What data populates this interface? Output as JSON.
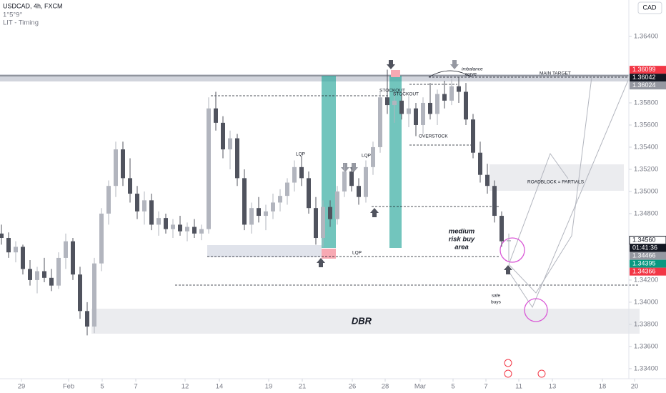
{
  "header": {
    "symbol": "USDCAD, 4h, FXCM",
    "line2": "1°5°9°",
    "indicator": "LIT - Timing",
    "currency": "CAD"
  },
  "chart_data": {
    "type": "candlestick",
    "colors": {
      "up": "#b2b5be",
      "down": "#50535e"
    },
    "x": [
      0,
      1,
      2,
      3,
      4,
      5,
      6,
      7,
      8,
      9,
      10,
      11,
      12,
      13,
      14,
      15,
      16,
      17,
      18,
      19,
      20,
      21,
      22,
      23,
      24,
      25,
      26,
      27,
      28,
      29,
      30,
      31,
      32,
      33,
      34,
      35,
      36,
      37,
      38,
      39,
      40,
      41,
      42,
      43,
      44,
      45,
      46,
      47,
      48,
      49,
      50,
      51,
      52,
      53,
      54,
      55,
      56,
      57,
      58,
      59,
      60,
      61,
      62,
      63,
      64,
      65,
      66,
      67,
      68,
      69,
      70,
      71
    ],
    "open": [
      1.3462,
      1.3458,
      1.3445,
      1.345,
      1.343,
      1.342,
      1.3428,
      1.3422,
      1.3415,
      1.344,
      1.3455,
      1.3425,
      1.3392,
      1.3378,
      1.3435,
      1.348,
      1.3505,
      1.3538,
      1.3512,
      1.3498,
      1.3482,
      1.3492,
      1.347,
      1.3476,
      1.3466,
      1.347,
      1.3464,
      1.3468,
      1.3462,
      1.3466,
      1.3575,
      1.3562,
      1.3538,
      1.3548,
      1.3512,
      1.347,
      1.3485,
      1.3478,
      1.3482,
      1.349,
      1.3496,
      1.3508,
      1.3522,
      1.3512,
      1.3485,
      1.3458,
      1.3486,
      1.3475,
      1.35,
      1.3518,
      1.3505,
      1.3495,
      1.3522,
      1.354,
      1.3585,
      1.3578,
      1.3582,
      1.357,
      1.3575,
      1.356,
      1.358,
      1.357,
      1.3588,
      1.3582,
      1.3595,
      1.359,
      1.3565,
      1.3535,
      1.3515,
      1.3505,
      1.3478,
      1.3455
    ],
    "high": [
      1.347,
      1.3463,
      1.3455,
      1.3452,
      1.3438,
      1.3432,
      1.344,
      1.343,
      1.3445,
      1.3462,
      1.3458,
      1.3432,
      1.34,
      1.344,
      1.3485,
      1.351,
      1.3545,
      1.3545,
      1.353,
      1.3505,
      1.35,
      1.3498,
      1.3482,
      1.348,
      1.3475,
      1.3478,
      1.3472,
      1.3475,
      1.347,
      1.3585,
      1.359,
      1.3568,
      1.3555,
      1.3552,
      1.352,
      1.349,
      1.3495,
      1.3488,
      1.3498,
      1.3502,
      1.3512,
      1.3528,
      1.3532,
      1.3518,
      1.3495,
      1.3492,
      1.3492,
      1.3505,
      1.3525,
      1.3522,
      1.3512,
      1.3528,
      1.3545,
      1.359,
      1.361,
      1.359,
      1.3588,
      1.3586,
      1.358,
      1.3585,
      1.3598,
      1.3592,
      1.36,
      1.3602,
      1.3603,
      1.3598,
      1.357,
      1.3545,
      1.3525,
      1.351,
      1.3482,
      1.3462
    ],
    "low": [
      1.3452,
      1.344,
      1.3436,
      1.3425,
      1.3415,
      1.3408,
      1.3418,
      1.341,
      1.3412,
      1.343,
      1.342,
      1.3385,
      1.337,
      1.3372,
      1.3428,
      1.347,
      1.3495,
      1.3505,
      1.349,
      1.3475,
      1.347,
      1.3465,
      1.346,
      1.3462,
      1.3458,
      1.346,
      1.3455,
      1.3458,
      1.3456,
      1.3462,
      1.3555,
      1.353,
      1.352,
      1.3505,
      1.3465,
      1.3462,
      1.3472,
      1.3465,
      1.3475,
      1.3482,
      1.3488,
      1.35,
      1.3505,
      1.348,
      1.3452,
      1.345,
      1.3468,
      1.347,
      1.3495,
      1.35,
      1.3488,
      1.349,
      1.3515,
      1.3535,
      1.357,
      1.3562,
      1.3565,
      1.3558,
      1.355,
      1.3552,
      1.3565,
      1.356,
      1.3575,
      1.3578,
      1.358,
      1.356,
      1.353,
      1.3508,
      1.3498,
      1.3472,
      1.345,
      1.3437
    ],
    "close": [
      1.3458,
      1.3445,
      1.345,
      1.343,
      1.342,
      1.3428,
      1.3422,
      1.3415,
      1.344,
      1.3455,
      1.3425,
      1.3392,
      1.3378,
      1.3435,
      1.348,
      1.3505,
      1.3538,
      1.3512,
      1.3498,
      1.3482,
      1.3492,
      1.347,
      1.3476,
      1.3466,
      1.347,
      1.3464,
      1.3468,
      1.3462,
      1.3466,
      1.3575,
      1.3562,
      1.3538,
      1.3548,
      1.3512,
      1.347,
      1.3485,
      1.3478,
      1.3482,
      1.349,
      1.3496,
      1.3508,
      1.3522,
      1.3512,
      1.3485,
      1.3458,
      1.3486,
      1.3475,
      1.35,
      1.3518,
      1.3505,
      1.3495,
      1.3522,
      1.354,
      1.3585,
      1.3578,
      1.3582,
      1.357,
      1.3575,
      1.356,
      1.358,
      1.357,
      1.3588,
      1.3582,
      1.3595,
      1.359,
      1.3565,
      1.3535,
      1.3515,
      1.3505,
      1.3478,
      1.3455,
      1.3456
    ],
    "xlim": [
      -0.2,
      89.8
    ],
    "ylim": [
      1.33309,
      1.36729
    ],
    "xticks": [
      {
        "value": 2.8,
        "label": "29"
      },
      {
        "value": 9.4,
        "label": "Feb"
      },
      {
        "value": 14.1,
        "label": "5"
      },
      {
        "value": 18.8,
        "label": "7"
      },
      {
        "value": 25.7,
        "label": "12"
      },
      {
        "value": 30.5,
        "label": "14"
      },
      {
        "value": 37.4,
        "label": "19"
      },
      {
        "value": 42.1,
        "label": "21"
      },
      {
        "value": 49.1,
        "label": "26"
      },
      {
        "value": 53.7,
        "label": "28"
      },
      {
        "value": 58.6,
        "label": "Mar"
      },
      {
        "value": 63.2,
        "label": "5"
      },
      {
        "value": 67.8,
        "label": "7"
      },
      {
        "value": 72.4,
        "label": "11"
      },
      {
        "value": 77.1,
        "label": "13"
      },
      {
        "value": 84.1,
        "label": "18"
      },
      {
        "value": 88.6,
        "label": "20"
      }
    ],
    "yticks": [
      {
        "value": 1.364,
        "label": "1.36400"
      },
      {
        "value": 1.358,
        "label": "1.35800"
      },
      {
        "value": 1.356,
        "label": "1.35600"
      },
      {
        "value": 1.354,
        "label": "1.35400"
      },
      {
        "value": 1.352,
        "label": "1.35200"
      },
      {
        "value": 1.35,
        "label": "1.35000"
      },
      {
        "value": 1.348,
        "label": "1.34800"
      },
      {
        "value": 1.342,
        "label": "1.34200"
      },
      {
        "value": 1.34,
        "label": "1.34000"
      },
      {
        "value": 1.338,
        "label": "1.33800"
      },
      {
        "value": 1.336,
        "label": "1.33600"
      },
      {
        "value": 1.334,
        "label": "1.33400"
      }
    ],
    "price_labels": [
      {
        "value": 1.36099,
        "label": "1.36099",
        "color": "#f23645"
      },
      {
        "value": 1.36042,
        "label": "1.36042",
        "color": "#131722"
      },
      {
        "value": 1.36024,
        "label": "1.36024",
        "color": "#9598a1"
      },
      {
        "value": 1.3456,
        "label": "1.34560",
        "color": "#ffffff"
      },
      {
        "value": 1.34466,
        "label": "1.34466",
        "color": "#9598a1"
      },
      {
        "value": 1.34395,
        "label": "1.34395",
        "color": "#089981"
      },
      {
        "value": 1.34366,
        "label": "1.34366",
        "color": "#f23645"
      }
    ],
    "countdown": "01:41:36"
  },
  "annotations": {
    "main_target": "MAIN TARGET",
    "imbalance": [
      "imbalance",
      "curve"
    ],
    "stockout": [
      "STOCKOUT",
      "STOCKOUT"
    ],
    "overstock": "OVERSTOCK",
    "roadblock": "ROADBLOCK = PARTIALS",
    "lqp": [
      "LQP",
      "LQP",
      "LQP"
    ],
    "medium": [
      "medium",
      "risk buy",
      "area"
    ],
    "safe": [
      "safe",
      "buys"
    ],
    "dbr": "DBR"
  }
}
